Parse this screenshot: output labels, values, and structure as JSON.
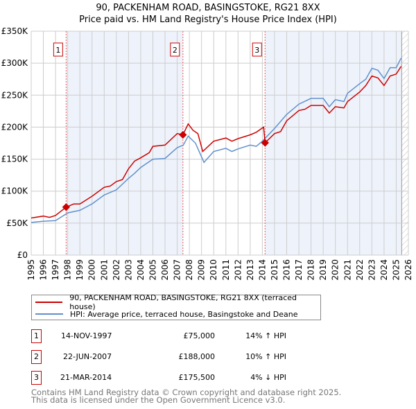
{
  "title_line1": "90, PACKENHAM ROAD, BASINGSTOKE, RG21 8XX",
  "title_line2": "Price paid vs. HM Land Registry's House Price Index (HPI)",
  "colors": {
    "property": "#cc0000",
    "hpi": "#6090cc",
    "band": "#eef3fb"
  },
  "legend": [
    {
      "label": "90, PACKENHAM ROAD, BASINGSTOKE, RG21 8XX (terraced house)"
    },
    {
      "label": "HPI: Average price, terraced house, Basingstoke and Deane"
    }
  ],
  "sales": [
    {
      "num": "1",
      "date": "14-NOV-1997",
      "price": "£75,000",
      "hpi": "14% ↑ HPI",
      "x": 1997.87,
      "y": 75000
    },
    {
      "num": "2",
      "date": "22-JUN-2007",
      "price": "£188,000",
      "hpi": "10% ↑ HPI",
      "x": 2007.47,
      "y": 188000
    },
    {
      "num": "3",
      "date": "21-MAR-2014",
      "price": "£175,500",
      "hpi": "4% ↓ HPI",
      "x": 2014.22,
      "y": 175500
    }
  ],
  "footer": [
    "Contains HM Land Registry data © Crown copyright and database right 2025.",
    "This data is licensed under the Open Government Licence v3.0."
  ],
  "chart_data": {
    "type": "line",
    "xlim": [
      1995,
      2026
    ],
    "ylim": [
      0,
      350000
    ],
    "grid": true,
    "legend_position": "below",
    "y_ticks": [
      0,
      50000,
      100000,
      150000,
      200000,
      250000,
      300000,
      350000
    ],
    "y_tick_labels": [
      "£0",
      "£50K",
      "£100K",
      "£150K",
      "£200K",
      "£250K",
      "£300K",
      "£350K"
    ],
    "x_ticks": [
      "1995",
      "1996",
      "1997",
      "1998",
      "1999",
      "2000",
      "2001",
      "2002",
      "2003",
      "2004",
      "2005",
      "2006",
      "2007",
      "2008",
      "2009",
      "2010",
      "2011",
      "2012",
      "2013",
      "2014",
      "2015",
      "2016",
      "2017",
      "2018",
      "2019",
      "2020",
      "2021",
      "2022",
      "2023",
      "2024",
      "2025",
      "2026"
    ],
    "data_end": 2025.45,
    "series": [
      {
        "name": "property",
        "points": [
          [
            1995,
            58
          ],
          [
            1996,
            61
          ],
          [
            1996.5,
            59
          ],
          [
            1997,
            62
          ],
          [
            1997.87,
            75
          ],
          [
            1998.5,
            80
          ],
          [
            1999,
            80
          ],
          [
            2000,
            92
          ],
          [
            2001,
            106
          ],
          [
            2001.5,
            108
          ],
          [
            2002,
            115
          ],
          [
            2002.5,
            118
          ],
          [
            2003,
            135
          ],
          [
            2003.5,
            147
          ],
          [
            2004,
            152
          ],
          [
            2004.7,
            160
          ],
          [
            2005,
            170
          ],
          [
            2006,
            172
          ],
          [
            2007,
            190
          ],
          [
            2007.47,
            188
          ],
          [
            2007.9,
            205
          ],
          [
            2008.3,
            195
          ],
          [
            2008.7,
            190
          ],
          [
            2009.1,
            162
          ],
          [
            2010,
            178
          ],
          [
            2011,
            183
          ],
          [
            2011.5,
            178
          ],
          [
            2012,
            182
          ],
          [
            2013,
            188
          ],
          [
            2013.5,
            192
          ],
          [
            2014.1,
            200
          ],
          [
            2014.22,
            175.5
          ],
          [
            2015,
            190
          ],
          [
            2015.5,
            193
          ],
          [
            2016,
            210
          ],
          [
            2017,
            226
          ],
          [
            2017.5,
            228
          ],
          [
            2018,
            234
          ],
          [
            2019,
            234
          ],
          [
            2019.5,
            222
          ],
          [
            2020,
            232
          ],
          [
            2020.7,
            230
          ],
          [
            2021,
            240
          ],
          [
            2022,
            255
          ],
          [
            2022.5,
            265
          ],
          [
            2023,
            280
          ],
          [
            2023.5,
            277
          ],
          [
            2024,
            265
          ],
          [
            2024.5,
            280
          ],
          [
            2025,
            283
          ],
          [
            2025.4,
            295
          ]
        ]
      },
      {
        "name": "hpi",
        "points": [
          [
            1995,
            51
          ],
          [
            1996,
            53
          ],
          [
            1997,
            54
          ],
          [
            1998,
            66
          ],
          [
            1999,
            70
          ],
          [
            2000,
            80
          ],
          [
            2001,
            94
          ],
          [
            2002,
            102
          ],
          [
            2003,
            120
          ],
          [
            2003.5,
            128
          ],
          [
            2004,
            137
          ],
          [
            2005,
            150
          ],
          [
            2006,
            151
          ],
          [
            2007,
            168
          ],
          [
            2007.5,
            172
          ],
          [
            2007.9,
            186
          ],
          [
            2008.5,
            175
          ],
          [
            2009.2,
            145
          ],
          [
            2010,
            162
          ],
          [
            2011,
            167
          ],
          [
            2011.5,
            162
          ],
          [
            2012,
            166
          ],
          [
            2013,
            172
          ],
          [
            2013.5,
            170
          ],
          [
            2014,
            178
          ],
          [
            2015,
            198
          ],
          [
            2016,
            220
          ],
          [
            2017,
            236
          ],
          [
            2018,
            245
          ],
          [
            2019,
            245
          ],
          [
            2019.5,
            232
          ],
          [
            2020,
            243
          ],
          [
            2020.7,
            240
          ],
          [
            2021,
            253
          ],
          [
            2022,
            268
          ],
          [
            2022.5,
            275
          ],
          [
            2023,
            292
          ],
          [
            2023.5,
            289
          ],
          [
            2024,
            276
          ],
          [
            2024.5,
            293
          ],
          [
            2025,
            293
          ],
          [
            2025.4,
            308
          ]
        ]
      }
    ]
  }
}
